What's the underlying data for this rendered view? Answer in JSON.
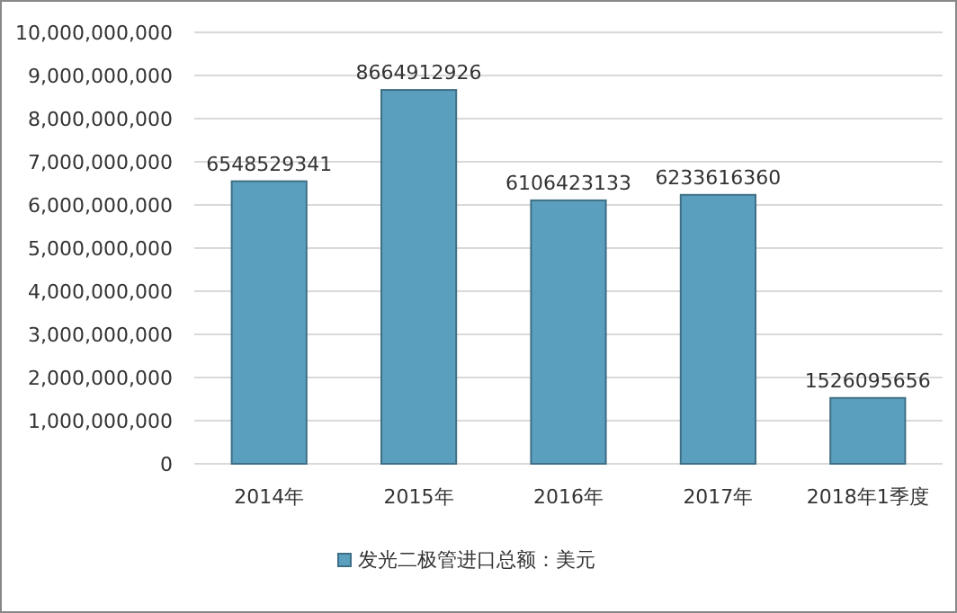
{
  "chart_data": {
    "type": "bar",
    "categories": [
      "2014年",
      "2015年",
      "2016年",
      "2017年",
      "2018年1季度"
    ],
    "series": [
      {
        "name": "发光二极管进口总额：美元",
        "color": "#5b9fbf",
        "values": [
          6548529341,
          8664912926,
          6106423133,
          6233616360,
          1526095656
        ]
      }
    ],
    "ylim": [
      0,
      10000000000
    ],
    "yticks": [
      0,
      {
        "value": 1000000000,
        "label": "1,000,000,000"
      },
      {
        "value": 2000000000,
        "label": "2,000,000,000"
      },
      {
        "value": 3000000000,
        "label": "3,000,000,000"
      },
      {
        "value": 4000000000,
        "label": "4,000,000,000"
      },
      {
        "value": 5000000000,
        "label": "5,000,000,000"
      },
      {
        "value": 6000000000,
        "label": "6,000,000,000"
      },
      {
        "value": 7000000000,
        "label": "7,000,000,000"
      },
      {
        "value": 8000000000,
        "label": "8,000,000,000"
      },
      {
        "value": 9000000000,
        "label": "9,000,000,000"
      },
      {
        "value": 10000000000,
        "label": "10,000,000,000"
      }
    ],
    "grid": "y",
    "data_labels": true,
    "legend": "bottom"
  }
}
